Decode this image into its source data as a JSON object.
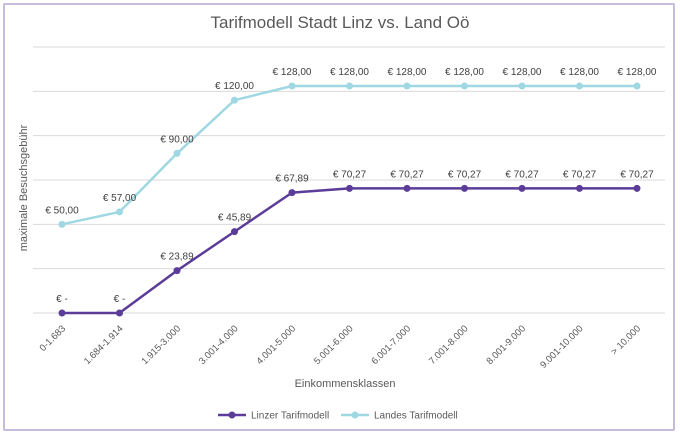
{
  "chart_data": {
    "type": "line",
    "title": "Tarifmodell Stadt Linz vs. Land Oö",
    "xlabel": "Einkommensklassen",
    "ylabel": "maximale Besuchsgebühr",
    "categories": [
      "0-1.683",
      "1.684-1.914",
      "1.915-3.000",
      "3.001-4.000",
      "4.001-5.000",
      "5.001-6.000",
      "6.001-7.000",
      "7.001-8.000",
      "8.001-9.000",
      "9.001-10.000",
      "> 10.000"
    ],
    "ylim": [
      0,
      150
    ],
    "grid": true,
    "legend": "bottom",
    "series": [
      {
        "name": "Linzer Tarifmodell",
        "color": "#5b3d99",
        "values": [
          0,
          0,
          23.89,
          45.89,
          67.89,
          70.27,
          70.27,
          70.27,
          70.27,
          70.27,
          70.27
        ],
        "labels": [
          "€ -",
          "€ -",
          "€ 23,89",
          "€ 45,89",
          "€ 67,89",
          "€ 70,27",
          "€ 70,27",
          "€ 70,27",
          "€ 70,27",
          "€ 70,27",
          "€ 70,27"
        ]
      },
      {
        "name": "Landes Tarifmodell",
        "color": "#9fd8e2",
        "values": [
          50,
          57,
          90,
          120,
          128,
          128,
          128,
          128,
          128,
          128,
          128
        ],
        "labels": [
          "€ 50,00",
          "€ 57,00",
          "€ 90,00",
          "€ 120,00",
          "€ 128,00",
          "€ 128,00",
          "€ 128,00",
          "€ 128,00",
          "€ 128,00",
          "€ 128,00",
          "€ 128,00"
        ]
      }
    ]
  }
}
